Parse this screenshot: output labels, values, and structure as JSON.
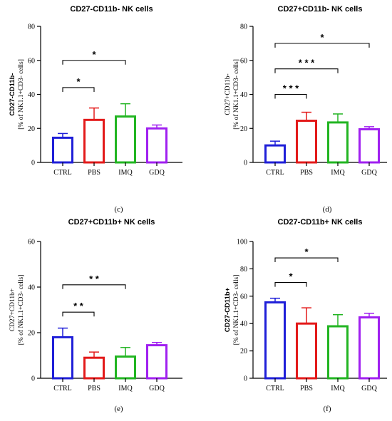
{
  "chart_data": [
    {
      "type": "bar",
      "title": "CD27-CD11b- NK cells",
      "ylabel_lines": [
        "CD27-CD11b-",
        "[% of NK1.1+CD3- cells]"
      ],
      "ylabel_bold": [
        true,
        false
      ],
      "categories": [
        "CTRL",
        "PBS",
        "IMQ",
        "GDQ"
      ],
      "values": [
        14.5,
        25,
        27,
        20
      ],
      "errors": [
        2.5,
        7,
        7.5,
        2
      ],
      "colors": [
        "#1f1fd8",
        "#e31a1a",
        "#22b522",
        "#a020f0"
      ],
      "ylim": [
        0,
        80
      ],
      "yticks": [
        0,
        20,
        40,
        60,
        80
      ],
      "significance": [
        {
          "from": 0,
          "to": 1,
          "y": 44,
          "label": "*"
        },
        {
          "from": 0,
          "to": 2,
          "y": 60,
          "label": "*"
        }
      ],
      "panel_label": "(c)"
    },
    {
      "type": "bar",
      "title": "CD27+CD11b- NK cells",
      "ylabel_lines": [
        "CD27+CD11b-",
        "[% of NK1.1+CD3- cells]"
      ],
      "ylabel_bold": [
        false,
        false
      ],
      "categories": [
        "CTRL",
        "PBS",
        "IMQ",
        "GDQ"
      ],
      "values": [
        10,
        24.5,
        23.5,
        19.5
      ],
      "errors": [
        2.5,
        5,
        5,
        1.5
      ],
      "colors": [
        "#1f1fd8",
        "#e31a1a",
        "#22b522",
        "#a020f0"
      ],
      "ylim": [
        0,
        80
      ],
      "yticks": [
        0,
        20,
        40,
        60,
        80
      ],
      "significance": [
        {
          "from": 0,
          "to": 1,
          "y": 40,
          "label": "* * *"
        },
        {
          "from": 0,
          "to": 2,
          "y": 55,
          "label": "* * *"
        },
        {
          "from": 0,
          "to": 3,
          "y": 70,
          "label": "*"
        }
      ],
      "panel_label": "(d)"
    },
    {
      "type": "bar",
      "title": "CD27+CD11b+ NK cells",
      "ylabel_lines": [
        "CD27+CD11b+",
        "[% of NK1.1+CD3- cells]"
      ],
      "ylabel_bold": [
        false,
        false
      ],
      "categories": [
        "CTRL",
        "PBS",
        "IMQ",
        "GDQ"
      ],
      "values": [
        18,
        9,
        9.5,
        14.5
      ],
      "errors": [
        4,
        2.5,
        4,
        1.2
      ],
      "colors": [
        "#1f1fd8",
        "#e31a1a",
        "#22b522",
        "#a020f0"
      ],
      "ylim": [
        0,
        60
      ],
      "yticks": [
        0,
        20,
        40,
        60
      ],
      "significance": [
        {
          "from": 0,
          "to": 1,
          "y": 29,
          "label": "* *"
        },
        {
          "from": 0,
          "to": 2,
          "y": 41,
          "label": "* *"
        }
      ],
      "panel_label": "(e)"
    },
    {
      "type": "bar",
      "title": "CD27-CD11b+ NK cells",
      "ylabel_lines": [
        "CD27-CD11b+",
        "[% of NK1.1+CD3- cells]"
      ],
      "ylabel_bold": [
        true,
        false
      ],
      "categories": [
        "CTRL",
        "PBS",
        "IMQ",
        "GDQ"
      ],
      "values": [
        55.5,
        40,
        38,
        44.5
      ],
      "errors": [
        3,
        11.5,
        8.5,
        3
      ],
      "colors": [
        "#1f1fd8",
        "#e31a1a",
        "#22b522",
        "#a020f0"
      ],
      "ylim": [
        0,
        100
      ],
      "yticks": [
        0,
        20,
        40,
        60,
        80,
        100
      ],
      "significance": [
        {
          "from": 0,
          "to": 1,
          "y": 70,
          "label": "*"
        },
        {
          "from": 0,
          "to": 2,
          "y": 88,
          "label": "*"
        }
      ],
      "panel_label": "(f)"
    }
  ]
}
